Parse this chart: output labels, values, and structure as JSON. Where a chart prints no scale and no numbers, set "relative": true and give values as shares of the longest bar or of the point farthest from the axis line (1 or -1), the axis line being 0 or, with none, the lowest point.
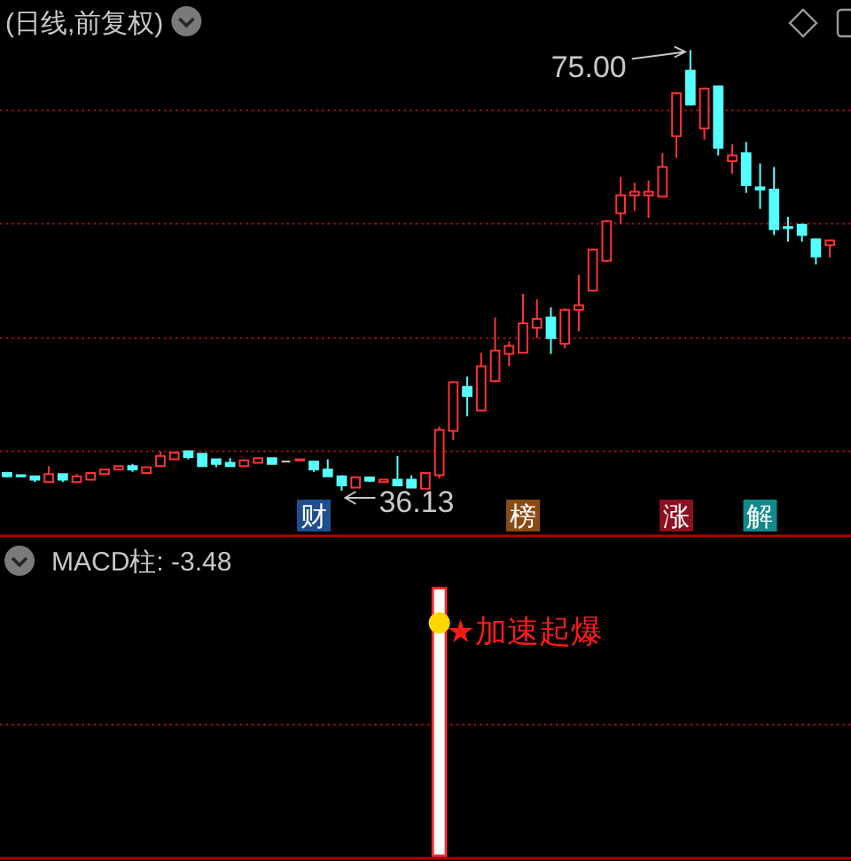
{
  "chart_data": [
    {
      "type": "candlestick",
      "title": "(日线,前复权)",
      "categories": [
        null,
        null,
        null,
        null,
        null,
        null,
        null,
        null,
        null,
        null,
        null,
        null,
        null,
        null,
        null,
        null,
        null,
        null,
        null,
        null,
        null,
        null,
        null,
        null,
        null,
        null,
        null,
        null,
        null,
        null,
        null,
        null,
        null,
        null,
        null,
        null,
        null,
        null,
        null,
        null,
        null,
        null,
        null,
        null,
        null,
        null,
        null,
        null,
        null,
        null,
        null,
        null,
        null,
        null,
        null,
        null,
        null,
        null,
        null,
        null
      ],
      "ohlc": [
        [
          37.7,
          37.8,
          37.3,
          37.4
        ],
        [
          37.5,
          37.5,
          37.4,
          37.4
        ],
        [
          37.4,
          37.4,
          36.9,
          37.1
        ],
        [
          36.9,
          38.3,
          36.9,
          37.6
        ],
        [
          37.6,
          37.6,
          36.9,
          37.1
        ],
        [
          36.9,
          37.6,
          36.9,
          37.4
        ],
        [
          37.1,
          37.7,
          37.1,
          37.7
        ],
        [
          37.6,
          38.0,
          37.6,
          38.0
        ],
        [
          38.0,
          38.3,
          38.0,
          38.3
        ],
        [
          38.3,
          38.5,
          37.8,
          38.0
        ],
        [
          37.7,
          38.2,
          37.6,
          38.2
        ],
        [
          38.3,
          39.6,
          38.3,
          39.2
        ],
        [
          38.9,
          39.6,
          38.9,
          39.5
        ],
        [
          39.6,
          39.6,
          38.9,
          39.1
        ],
        [
          39.4,
          39.4,
          38.3,
          38.3
        ],
        [
          38.9,
          38.9,
          38.2,
          38.5
        ],
        [
          38.6,
          39.0,
          38.3,
          38.3
        ],
        [
          38.3,
          38.9,
          38.3,
          38.8
        ],
        [
          38.6,
          39.0,
          38.6,
          39.0
        ],
        [
          39.0,
          39.0,
          38.5,
          38.5
        ],
        [
          38.7,
          38.7,
          38.7,
          38.7
        ],
        [
          38.8,
          38.9,
          38.8,
          38.9
        ],
        [
          38.7,
          38.7,
          37.8,
          38.0
        ],
        [
          38.0,
          38.9,
          37.4,
          37.4
        ],
        [
          37.4,
          37.5,
          36.13,
          36.6
        ],
        [
          36.4,
          37.4,
          36.4,
          37.3
        ],
        [
          37.3,
          37.4,
          36.9,
          37.0
        ],
        [
          36.9,
          37.1,
          36.9,
          37.1
        ],
        [
          37.1,
          39.2,
          36.6,
          36.6
        ],
        [
          37.1,
          37.5,
          36.4,
          36.4
        ],
        [
          36.3,
          37.8,
          36.3,
          37.7
        ],
        [
          37.5,
          41.8,
          37.2,
          41.5
        ],
        [
          41.4,
          45.8,
          40.6,
          45.7
        ],
        [
          45.3,
          46.2,
          42.7,
          44.5
        ],
        [
          43.2,
          48.3,
          43.2,
          47.1
        ],
        [
          45.8,
          51.4,
          45.7,
          48.5
        ],
        [
          48.2,
          49.3,
          47.1,
          48.9
        ],
        [
          48.3,
          53.5,
          48.2,
          50.9
        ],
        [
          50.5,
          53.0,
          49.6,
          51.3
        ],
        [
          51.4,
          52.3,
          48.2,
          49.6
        ],
        [
          49.1,
          52.2,
          48.7,
          52.1
        ],
        [
          52.1,
          55.2,
          50.2,
          52.5
        ],
        [
          53.8,
          57.5,
          53.7,
          57.4
        ],
        [
          56.4,
          60.0,
          56.3,
          59.9
        ],
        [
          60.6,
          63.8,
          59.7,
          62.2
        ],
        [
          62.2,
          63.3,
          60.8,
          62.5
        ],
        [
          62.2,
          63.5,
          60.2,
          62.5
        ],
        [
          62.1,
          65.9,
          62.1,
          64.7
        ],
        [
          67.4,
          71.3,
          65.5,
          71.2
        ],
        [
          73.2,
          75.0,
          70.1,
          70.2
        ],
        [
          68.1,
          71.7,
          67.1,
          71.6
        ],
        [
          71.8,
          71.8,
          65.7,
          66.4
        ],
        [
          65.2,
          66.7,
          64.1,
          65.7
        ],
        [
          65.9,
          66.9,
          62.4,
          63.1
        ],
        [
          62.9,
          65.0,
          61.0,
          62.7
        ],
        [
          62.7,
          64.7,
          58.7,
          59.2
        ],
        [
          59.4,
          60.3,
          58.1,
          59.3
        ],
        [
          59.6,
          59.7,
          58.1,
          58.7
        ],
        [
          58.3,
          58.4,
          56.1,
          56.8
        ],
        [
          57.8,
          58.3,
          56.7,
          58.2
        ]
      ],
      "colors": [
        "#54ffff",
        "#54ffff",
        "#54ffff",
        "#ff3232",
        "#54ffff",
        "#ff3232",
        "#ff3232",
        "#ff3232",
        "#ff3232",
        "#54ffff",
        "#ff3232",
        "#ff3232",
        "#ff3232",
        "#54ffff",
        "#54ffff",
        "#54ffff",
        "#54ffff",
        "#ff3232",
        "#ff3232",
        "#54ffff",
        "#c8c8c8",
        "#ff3232",
        "#54ffff",
        "#54ffff",
        "#54ffff",
        "#ff3232",
        "#54ffff",
        "#ff3232",
        "#54ffff",
        "#54ffff",
        "#ff3232",
        "#ff3232",
        "#ff3232",
        "#54ffff",
        "#ff3232",
        "#ff3232",
        "#ff3232",
        "#ff3232",
        "#ff3232",
        "#54ffff",
        "#ff3232",
        "#ff3232",
        "#ff3232",
        "#ff3232",
        "#ff3232",
        "#ff3232",
        "#ff3232",
        "#ff3232",
        "#ff3232",
        "#54ffff",
        "#ff3232",
        "#54ffff",
        "#ff3232",
        "#54ffff",
        "#54ffff",
        "#54ffff",
        "#54ffff",
        "#54ffff",
        "#54ffff",
        "#ff3232"
      ],
      "ref_lines": [
        {
          "axis": "y",
          "value": 69.7,
          "color": "#a01010",
          "line_style": "dotted"
        },
        {
          "axis": "y",
          "value": 59.7,
          "color": "#a01010",
          "line_style": "dotted"
        },
        {
          "axis": "y",
          "value": 49.6,
          "color": "#a01010",
          "line_style": "dotted"
        },
        {
          "axis": "y",
          "value": 39.6,
          "color": "#a01010",
          "line_style": "dotted"
        }
      ],
      "annotations": [
        "75.00",
        {
          "text": "36.13",
          "y": 36.13
        },
        "财",
        "榜",
        "涨",
        "解"
      ]
    },
    {
      "type": "bar",
      "title": "MACD柱: -3.48",
      "relative": true,
      "marker": "circle",
      "categories": [
        null,
        null,
        null,
        null,
        null,
        null,
        null,
        null,
        null,
        null,
        null,
        null,
        null,
        null,
        null,
        null,
        null,
        null,
        null,
        null,
        null,
        null,
        null,
        null,
        null,
        null,
        null,
        null,
        null,
        null,
        null,
        null,
        null,
        null,
        null,
        null,
        null,
        null,
        null,
        null,
        null,
        null,
        null,
        null,
        null,
        null,
        null,
        null,
        null,
        null,
        null,
        null,
        null,
        null,
        null,
        null,
        null,
        null,
        null,
        null
      ],
      "series": [
        {
          "type": "bar",
          "color": "#ffffff",
          "values": [
            null,
            null,
            null,
            null,
            null,
            null,
            null,
            null,
            null,
            null,
            null,
            null,
            null,
            null,
            null,
            null,
            null,
            null,
            null,
            null,
            null,
            null,
            null,
            null,
            null,
            null,
            null,
            null,
            null,
            null,
            null,
            1,
            null,
            null,
            null,
            null,
            null,
            null,
            null,
            null,
            null,
            null,
            null,
            null,
            null,
            null,
            null,
            null,
            null,
            null,
            null,
            null,
            null,
            null,
            null,
            null,
            null,
            null,
            null,
            null
          ]
        },
        {
          "type": "scatter",
          "color": "#ffd700",
          "values": [
            null,
            null,
            null,
            null,
            null,
            null,
            null,
            null,
            null,
            null,
            null,
            null,
            null,
            null,
            null,
            null,
            null,
            null,
            null,
            null,
            null,
            null,
            null,
            null,
            null,
            null,
            null,
            null,
            null,
            null,
            null,
            0.87,
            null,
            null,
            null,
            null,
            null,
            null,
            null,
            null,
            null,
            null,
            null,
            null,
            null,
            null,
            null,
            null,
            null,
            null,
            null,
            null,
            null,
            null,
            null,
            null,
            null,
            null,
            null,
            null
          ]
        }
      ],
      "ref_lines": [
        {
          "axis": "y",
          "value": 0.49,
          "color": "#a01010",
          "line_style": "dotted"
        }
      ],
      "annotations": [
        "★加速起爆"
      ]
    }
  ]
}
